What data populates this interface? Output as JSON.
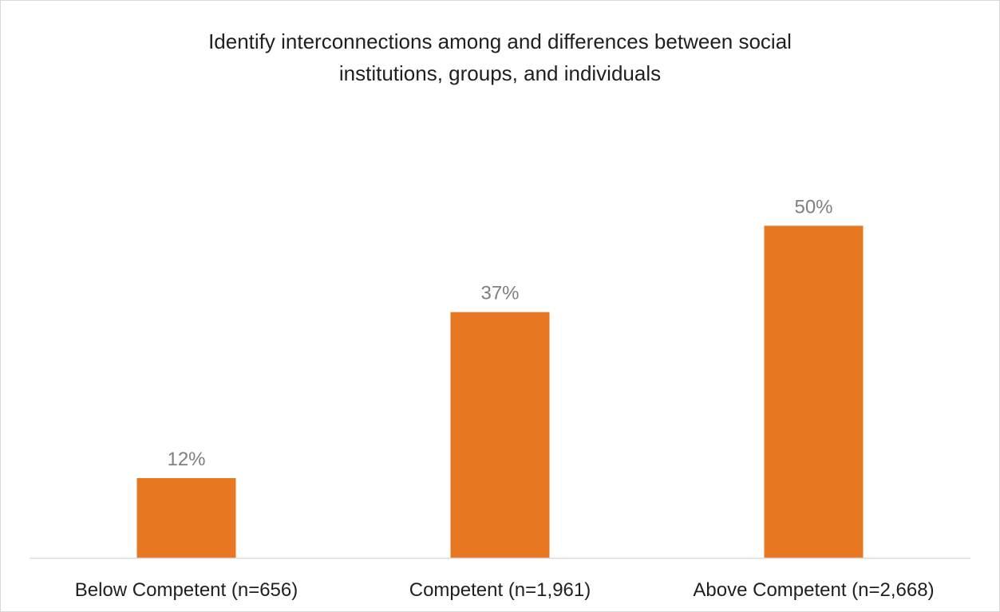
{
  "chart_data": {
    "type": "bar",
    "title_lines": [
      "Identify interconnections among and differences between social",
      "institutions, groups, and individuals"
    ],
    "categories": [
      "Below Competent (n=656)",
      "Competent (n=1,961)",
      "Above Competent (n=2,668)"
    ],
    "values": [
      12,
      37,
      50
    ],
    "data_labels": [
      "12%",
      "37%",
      "50%"
    ],
    "unit": "%",
    "ylim": [
      0,
      60
    ],
    "grid": false,
    "legend": "none",
    "bar_color": "#E87722",
    "label_color": "#7f7f7f",
    "axis_color": "#d9d9d9",
    "text_color": "#1f1f1f"
  }
}
